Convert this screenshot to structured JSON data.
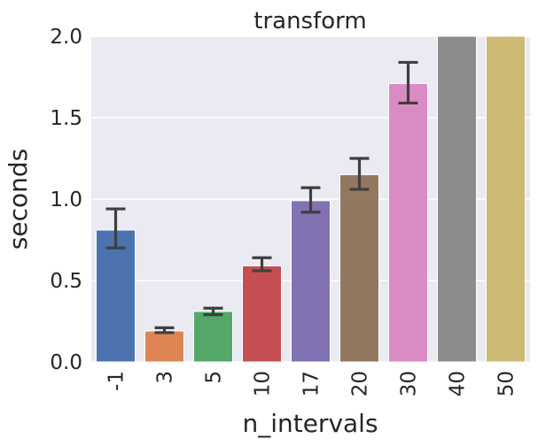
{
  "chart_data": {
    "type": "bar",
    "title": "transform",
    "xlabel": "n_intervals",
    "ylabel": "seconds",
    "categories": [
      "-1",
      "3",
      "5",
      "10",
      "17",
      "20",
      "30",
      "40",
      "50"
    ],
    "values": [
      0.81,
      0.19,
      0.31,
      0.59,
      0.99,
      1.15,
      1.71,
      2.0,
      2.0
    ],
    "error_low": [
      0.7,
      0.18,
      0.29,
      0.56,
      0.92,
      1.06,
      1.59,
      null,
      null
    ],
    "error_high": [
      0.94,
      0.21,
      0.33,
      0.64,
      1.07,
      1.25,
      1.84,
      null,
      null
    ],
    "ylim": [
      0,
      2.0
    ],
    "yticks": [
      0.0,
      0.5,
      1.0,
      1.5,
      2.0
    ],
    "ytick_labels": [
      "0.0",
      "0.5",
      "1.0",
      "1.5",
      "2.0"
    ],
    "grid": true,
    "colors": [
      "#4c72b0",
      "#dd8452",
      "#55a868",
      "#c44e52",
      "#8172b3",
      "#937860",
      "#da8bc3",
      "#8c8c8c",
      "#ccb974"
    ],
    "background": "#eaeaf2",
    "error_color": "#3f3f3f"
  }
}
